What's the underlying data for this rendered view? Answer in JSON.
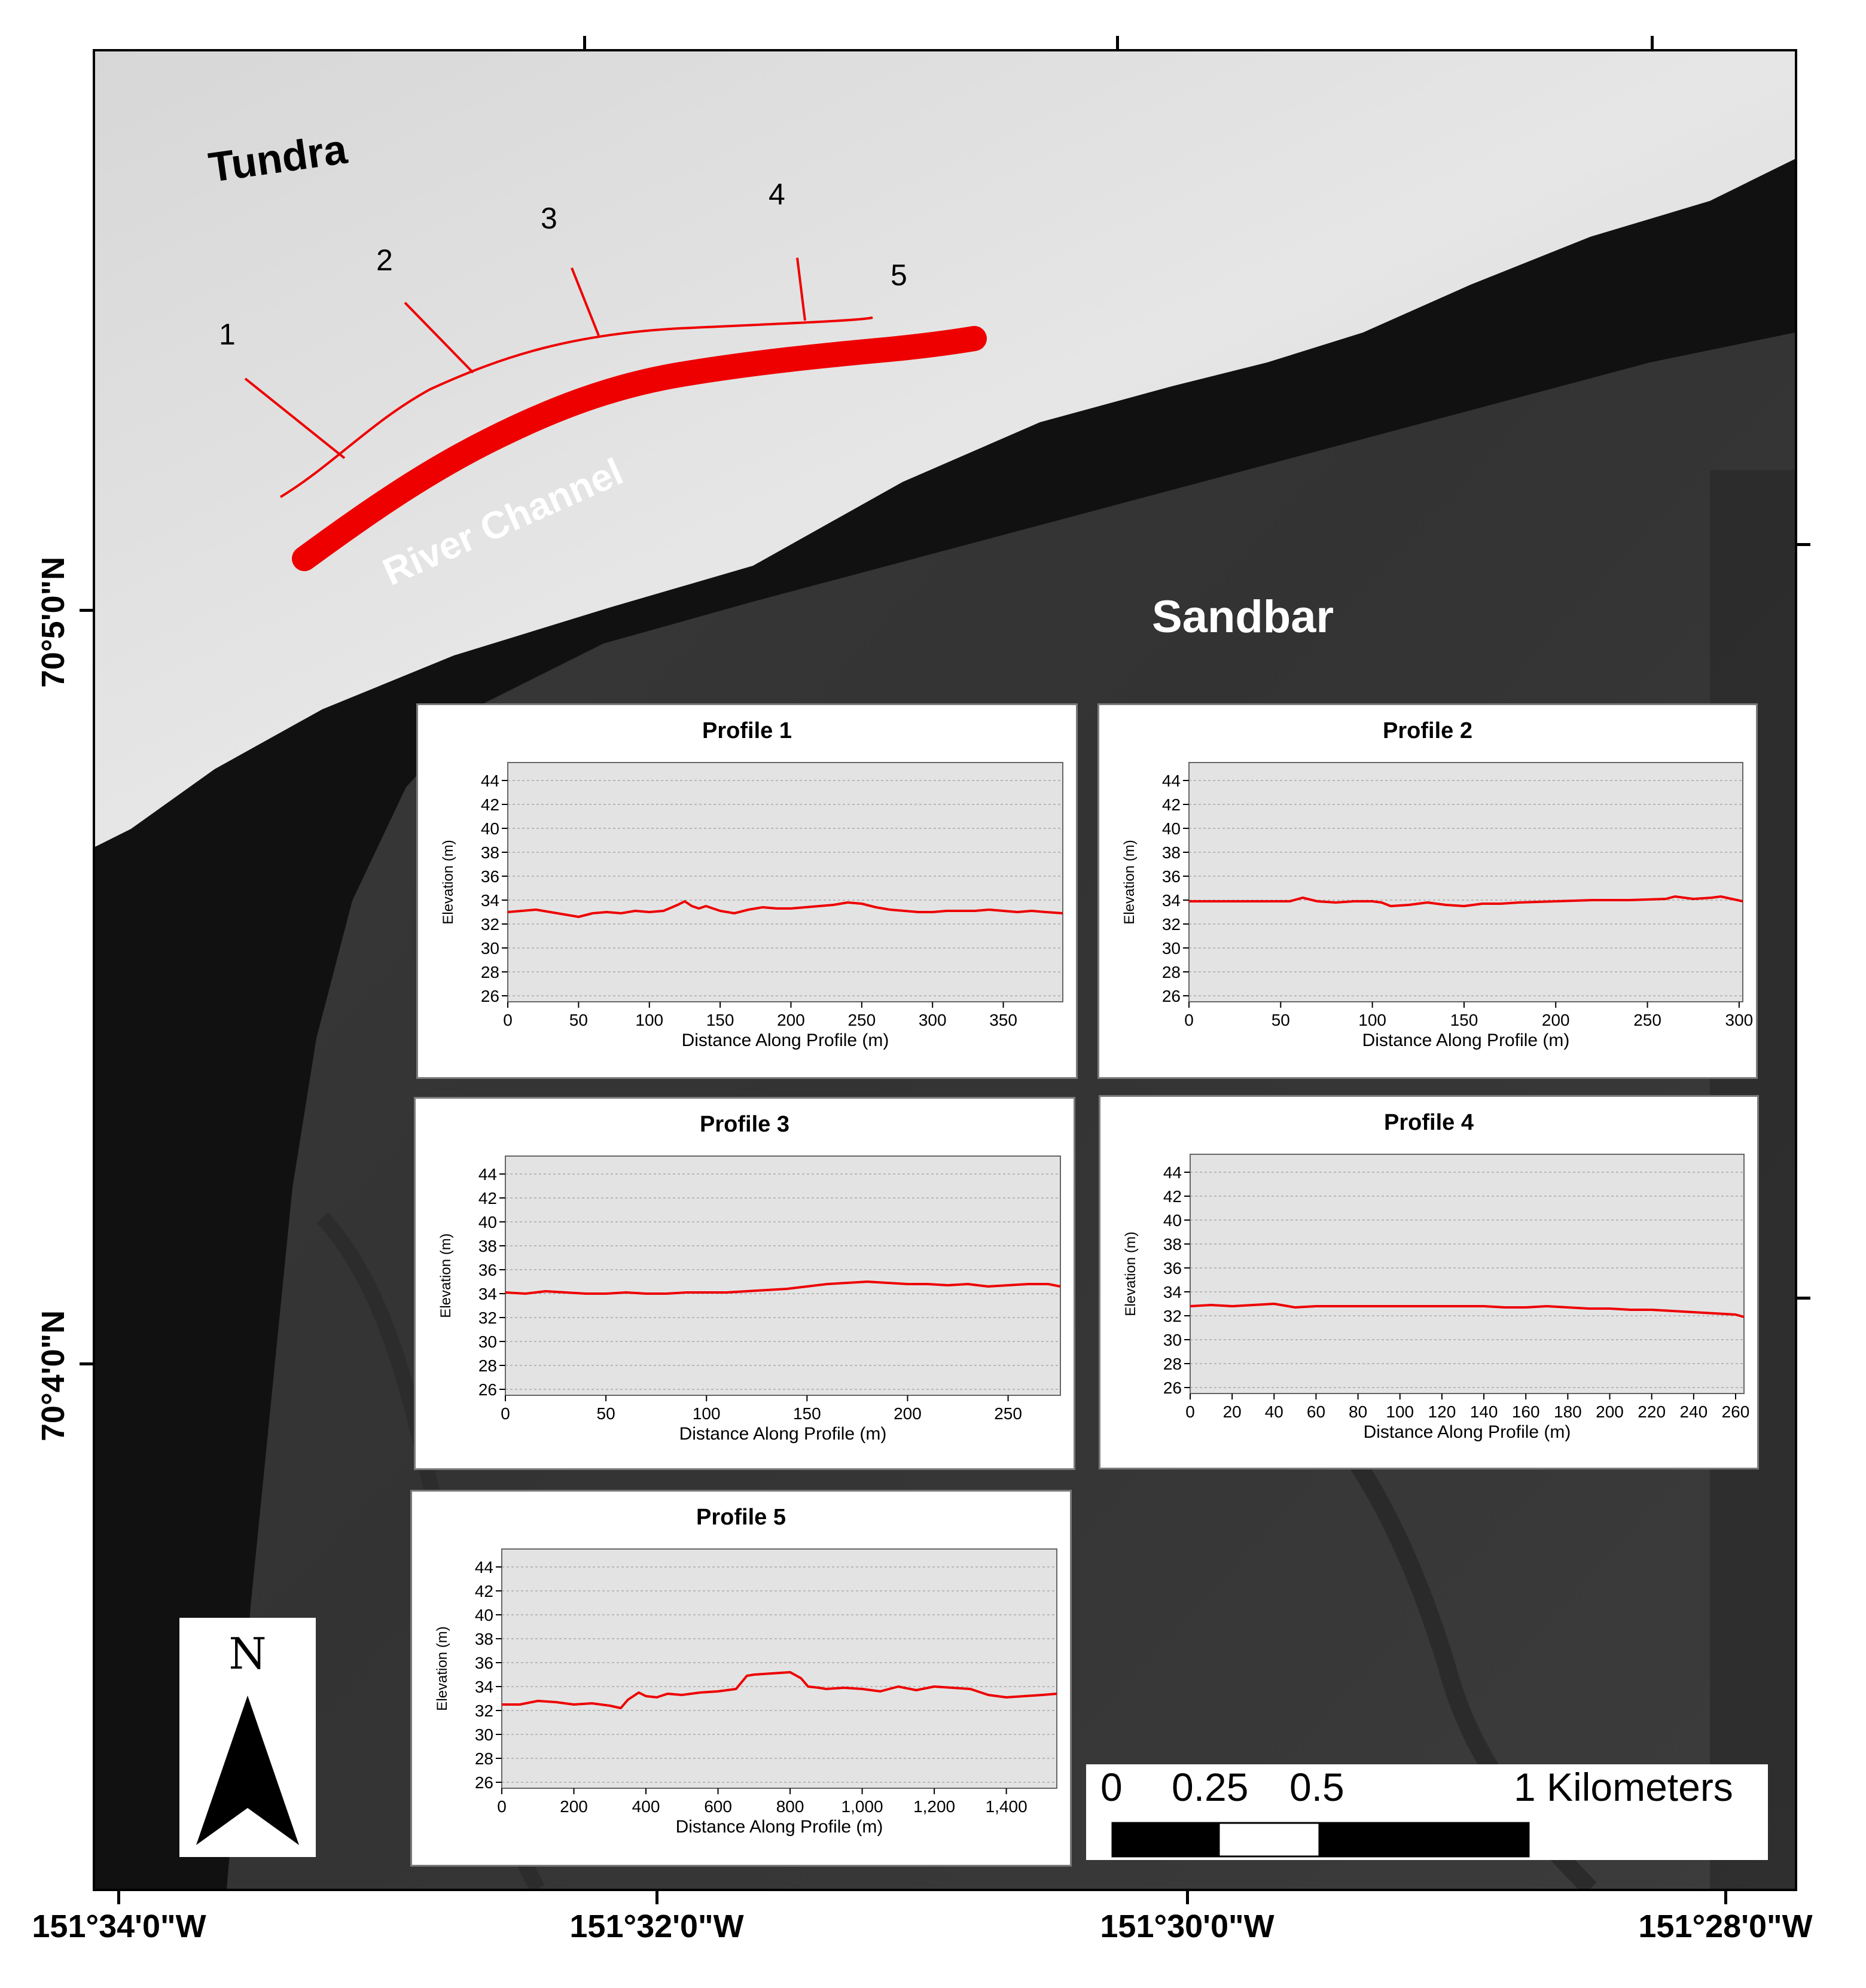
{
  "labels": {
    "tundra": "Tundra",
    "river": "River Channel",
    "sandbar": "Sandbar"
  },
  "profile_lines": [
    "1",
    "2",
    "3",
    "4",
    "5"
  ],
  "lon_labels": [
    "151°34'0\"W",
    "151°32'0\"W",
    "151°30'0\"W",
    "151°28'0\"W"
  ],
  "lat_labels": [
    "70°5'0\"N",
    "70°4'0\"N"
  ],
  "north_arrow": {
    "letter": "N",
    "icon": "north-arrow-icon"
  },
  "scale_bar": {
    "labels": [
      "0",
      "0.25",
      "0.5",
      "1 Kilometers"
    ],
    "segments_km": [
      0,
      0.25,
      0.5,
      1
    ]
  },
  "colors": {
    "profile": "#ee0000",
    "plot_bg": "#e3e3e3",
    "grid": "#aaaaaa",
    "river": "#111111"
  },
  "chart_data": [
    {
      "type": "line",
      "title": "Profile 1",
      "xlabel": "Distance Along Profile (m)",
      "ylabel": "Elevation (m)",
      "xticks": [
        0,
        50,
        100,
        150,
        200,
        250,
        300,
        350
      ],
      "xtick_labels": [
        "0",
        "50",
        "100",
        "150",
        "200",
        "250",
        "300",
        "350"
      ],
      "xlim": [
        0,
        392
      ],
      "yticks": [
        26,
        28,
        30,
        32,
        34,
        36,
        38,
        40,
        42,
        44
      ],
      "ylim": [
        25.5,
        45.5
      ],
      "grid": true,
      "series": [
        {
          "x": [
            0,
            10,
            20,
            30,
            40,
            50,
            60,
            70,
            80,
            90,
            100,
            110,
            120,
            125,
            130,
            135,
            140,
            150,
            160,
            170,
            180,
            190,
            200,
            210,
            220,
            230,
            240,
            250,
            260,
            270,
            280,
            290,
            300,
            310,
            320,
            330,
            340,
            350,
            360,
            370,
            380,
            392
          ],
          "y": [
            33.0,
            33.1,
            33.2,
            33.0,
            32.8,
            32.6,
            32.9,
            33.0,
            32.9,
            33.1,
            33.0,
            33.1,
            33.6,
            33.9,
            33.5,
            33.3,
            33.5,
            33.1,
            32.9,
            33.2,
            33.4,
            33.3,
            33.3,
            33.4,
            33.5,
            33.6,
            33.8,
            33.7,
            33.4,
            33.2,
            33.1,
            33.0,
            33.0,
            33.1,
            33.1,
            33.1,
            33.2,
            33.1,
            33.0,
            33.1,
            33.0,
            32.9
          ]
        }
      ]
    },
    {
      "type": "line",
      "title": "Profile 2",
      "xlabel": "Distance Along Profile (m)",
      "ylabel": "Elevation (m)",
      "xticks": [
        0,
        50,
        100,
        150,
        200,
        250,
        300
      ],
      "xtick_labels": [
        "0",
        "50",
        "100",
        "150",
        "200",
        "250",
        "300"
      ],
      "xlim": [
        0,
        302
      ],
      "yticks": [
        26,
        28,
        30,
        32,
        34,
        36,
        38,
        40,
        42,
        44
      ],
      "ylim": [
        25.5,
        45.5
      ],
      "grid": true,
      "series": [
        {
          "x": [
            0,
            20,
            40,
            55,
            62,
            70,
            80,
            90,
            100,
            105,
            110,
            120,
            130,
            140,
            150,
            160,
            170,
            180,
            200,
            220,
            240,
            260,
            265,
            275,
            285,
            290,
            302
          ],
          "y": [
            33.9,
            33.9,
            33.9,
            33.9,
            34.2,
            33.9,
            33.8,
            33.9,
            33.9,
            33.8,
            33.5,
            33.6,
            33.8,
            33.6,
            33.5,
            33.7,
            33.7,
            33.8,
            33.9,
            34.0,
            34.0,
            34.1,
            34.3,
            34.1,
            34.2,
            34.3,
            33.9
          ]
        }
      ]
    },
    {
      "type": "line",
      "title": "Profile 3",
      "xlabel": "Distance Along Profile (m)",
      "ylabel": "Elevation (m)",
      "xticks": [
        0,
        50,
        100,
        150,
        200,
        250
      ],
      "xtick_labels": [
        "0",
        "50",
        "100",
        "150",
        "200",
        "250"
      ],
      "xlim": [
        0,
        276
      ],
      "yticks": [
        26,
        28,
        30,
        32,
        34,
        36,
        38,
        40,
        42,
        44
      ],
      "ylim": [
        25.5,
        45.5
      ],
      "grid": true,
      "series": [
        {
          "x": [
            0,
            10,
            20,
            30,
            40,
            50,
            60,
            70,
            80,
            90,
            100,
            110,
            120,
            130,
            140,
            150,
            160,
            170,
            180,
            190,
            200,
            210,
            220,
            230,
            240,
            250,
            260,
            270,
            276
          ],
          "y": [
            34.1,
            34.0,
            34.2,
            34.1,
            34.0,
            34.0,
            34.1,
            34.0,
            34.0,
            34.1,
            34.1,
            34.1,
            34.2,
            34.3,
            34.4,
            34.6,
            34.8,
            34.9,
            35.0,
            34.9,
            34.8,
            34.8,
            34.7,
            34.8,
            34.6,
            34.7,
            34.8,
            34.8,
            34.6
          ]
        }
      ]
    },
    {
      "type": "line",
      "title": "Profile 4",
      "xlabel": "Distance Along Profile (m)",
      "ylabel": "Elevation (m)",
      "xticks": [
        0,
        20,
        40,
        60,
        80,
        100,
        120,
        140,
        160,
        180,
        200,
        220,
        240,
        260
      ],
      "xtick_labels": [
        "0",
        "20",
        "40",
        "60",
        "80",
        "100",
        "120",
        "140",
        "160",
        "180",
        "200",
        "220",
        "240",
        "260"
      ],
      "xlim": [
        0,
        264
      ],
      "yticks": [
        26,
        28,
        30,
        32,
        34,
        36,
        38,
        40,
        42,
        44
      ],
      "ylim": [
        25.5,
        45.5
      ],
      "grid": true,
      "series": [
        {
          "x": [
            0,
            10,
            20,
            30,
            40,
            50,
            60,
            70,
            80,
            100,
            120,
            140,
            150,
            160,
            170,
            180,
            190,
            200,
            210,
            220,
            230,
            240,
            250,
            260,
            264
          ],
          "y": [
            32.8,
            32.9,
            32.8,
            32.9,
            33.0,
            32.7,
            32.8,
            32.8,
            32.8,
            32.8,
            32.8,
            32.8,
            32.7,
            32.7,
            32.8,
            32.7,
            32.6,
            32.6,
            32.5,
            32.5,
            32.4,
            32.3,
            32.2,
            32.1,
            31.9
          ]
        }
      ]
    },
    {
      "type": "line",
      "title": "Profile 5",
      "xlabel": "Distance Along Profile (m)",
      "ylabel": "Elevation (m)",
      "xticks": [
        0,
        200,
        400,
        600,
        800,
        1000,
        1200,
        1400
      ],
      "xtick_labels": [
        "0",
        "200",
        "400",
        "600",
        "800",
        "1,000",
        "1,200",
        "1,400"
      ],
      "xlim": [
        0,
        1540
      ],
      "yticks": [
        26,
        28,
        30,
        32,
        34,
        36,
        38,
        40,
        42,
        44
      ],
      "ylim": [
        25.5,
        45.5
      ],
      "grid": true,
      "series": [
        {
          "x": [
            0,
            50,
            100,
            150,
            200,
            250,
            300,
            330,
            350,
            380,
            400,
            430,
            460,
            500,
            550,
            600,
            650,
            680,
            700,
            750,
            800,
            830,
            850,
            880,
            900,
            950,
            1000,
            1050,
            1100,
            1150,
            1200,
            1250,
            1300,
            1350,
            1400,
            1450,
            1500,
            1540
          ],
          "y": [
            32.5,
            32.5,
            32.8,
            32.7,
            32.5,
            32.6,
            32.4,
            32.2,
            32.9,
            33.5,
            33.2,
            33.1,
            33.4,
            33.3,
            33.5,
            33.6,
            33.8,
            34.9,
            35.0,
            35.1,
            35.2,
            34.7,
            34.0,
            33.9,
            33.8,
            33.9,
            33.8,
            33.6,
            34.0,
            33.7,
            34.0,
            33.9,
            33.8,
            33.3,
            33.1,
            33.2,
            33.3,
            33.4
          ]
        }
      ]
    }
  ]
}
